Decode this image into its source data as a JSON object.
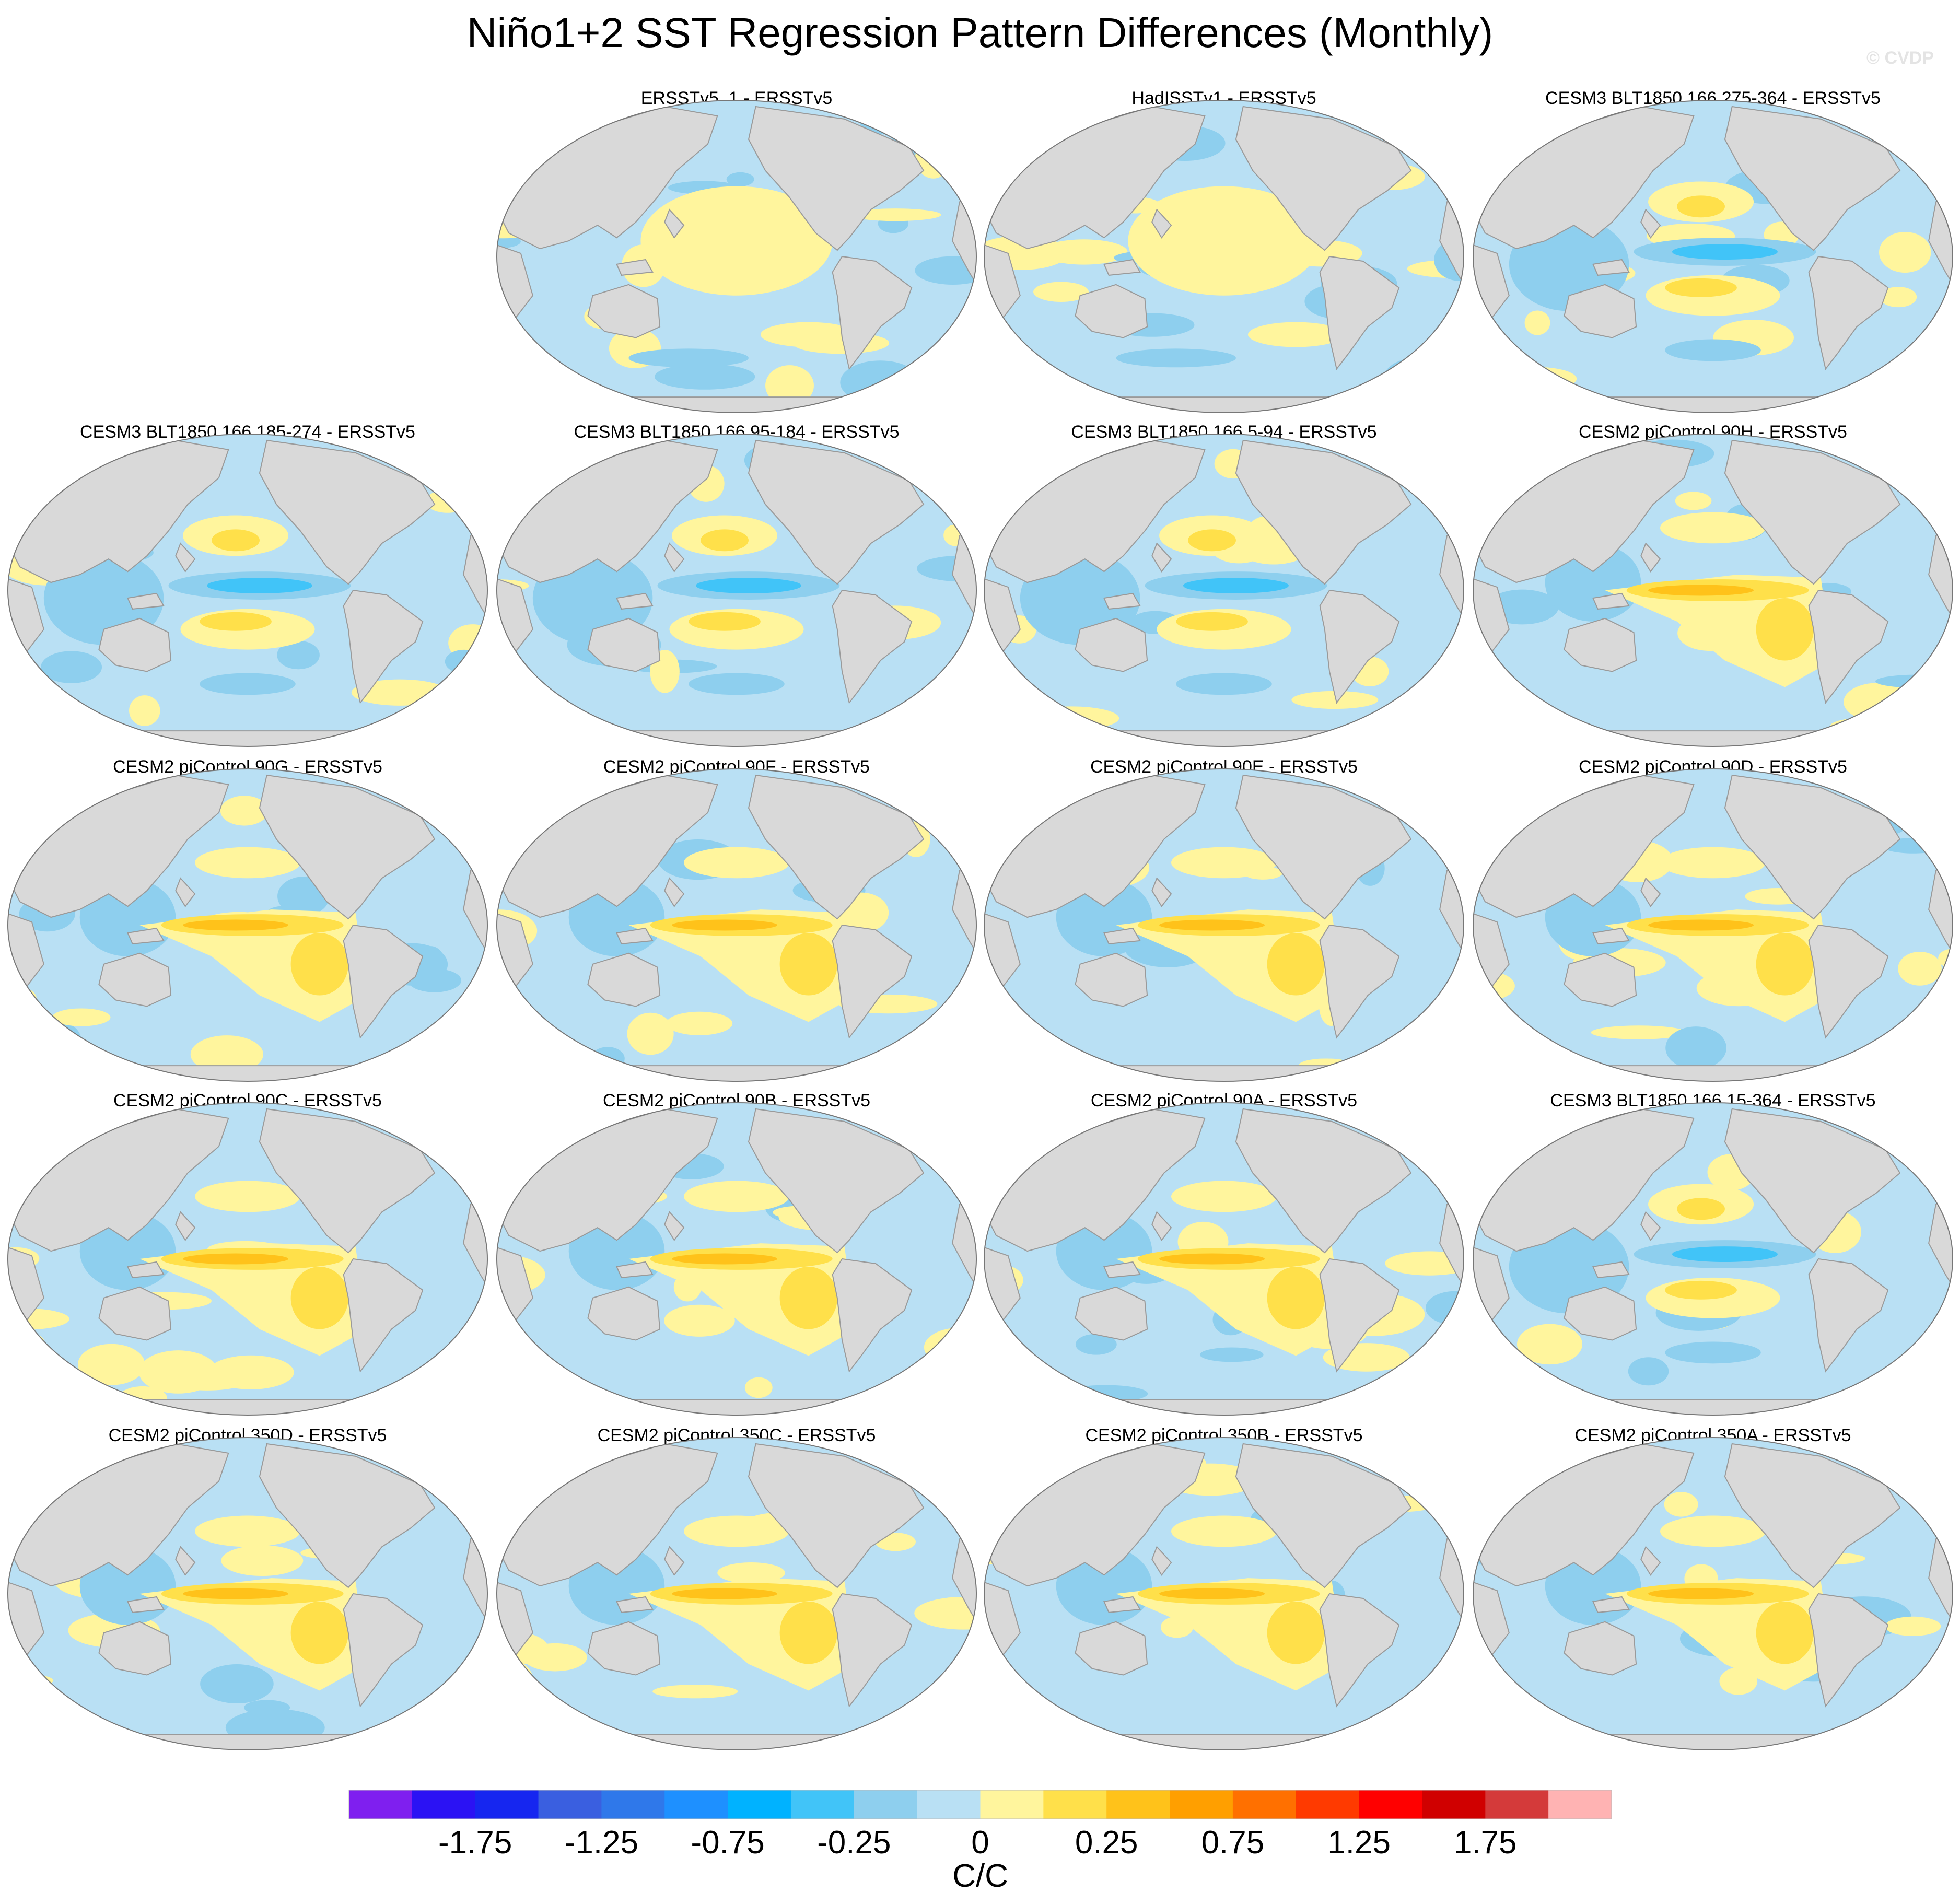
{
  "title": "Niño1+2 SST Regression Pattern Differences (Monthly)",
  "watermark": "© CVDP",
  "panels": [
    {
      "title": "ERSSTv5_1 - ERSSTv5"
    },
    {
      "title": "HadISSTv1 - ERSSTv5"
    },
    {
      "title": "CESM3 BLT1850 166 275-364 - ERSSTv5"
    },
    {
      "title": "CESM3 BLT1850 166 185-274 - ERSSTv5"
    },
    {
      "title": "CESM3 BLT1850 166 95-184 - ERSSTv5"
    },
    {
      "title": "CESM3 BLT1850 166 5-94 - ERSSTv5"
    },
    {
      "title": "CESM2 piControl 90H - ERSSTv5"
    },
    {
      "title": "CESM2 piControl 90G - ERSSTv5"
    },
    {
      "title": "CESM2 piControl 90F - ERSSTv5"
    },
    {
      "title": "CESM2 piControl 90E - ERSSTv5"
    },
    {
      "title": "CESM2 piControl 90D - ERSSTv5"
    },
    {
      "title": "CESM2 piControl 90C - ERSSTv5"
    },
    {
      "title": "CESM2 piControl 90B - ERSSTv5"
    },
    {
      "title": "CESM2 piControl 90A - ERSSTv5"
    },
    {
      "title": "CESM3 BLT1850 166 15-364 - ERSSTv5"
    },
    {
      "title": "CESM2 piControl 350D - ERSSTv5"
    },
    {
      "title": "CESM2 piControl 350C - ERSSTv5"
    },
    {
      "title": "CESM2 piControl 350B - ERSSTv5"
    },
    {
      "title": "CESM2 piControl 350A - ERSSTv5"
    }
  ],
  "colorbar": {
    "colors": [
      "#7f1fef",
      "#2b12f4",
      "#1626f0",
      "#3a5fe0",
      "#2f78ea",
      "#1e90ff",
      "#00b2ff",
      "#41c4f8",
      "#8ecfee",
      "#b9e0f4",
      "#fff59d",
      "#ffe04a",
      "#ffc21a",
      "#ff9f00",
      "#ff7000",
      "#ff3a00",
      "#ff0000",
      "#d00000",
      "#d43a3a",
      "#ffb3b3"
    ],
    "ticks": [
      -1.75,
      -1.25,
      -0.75,
      -0.25,
      0,
      0.25,
      0.75,
      1.25,
      1.75
    ],
    "units": "C/C"
  }
}
